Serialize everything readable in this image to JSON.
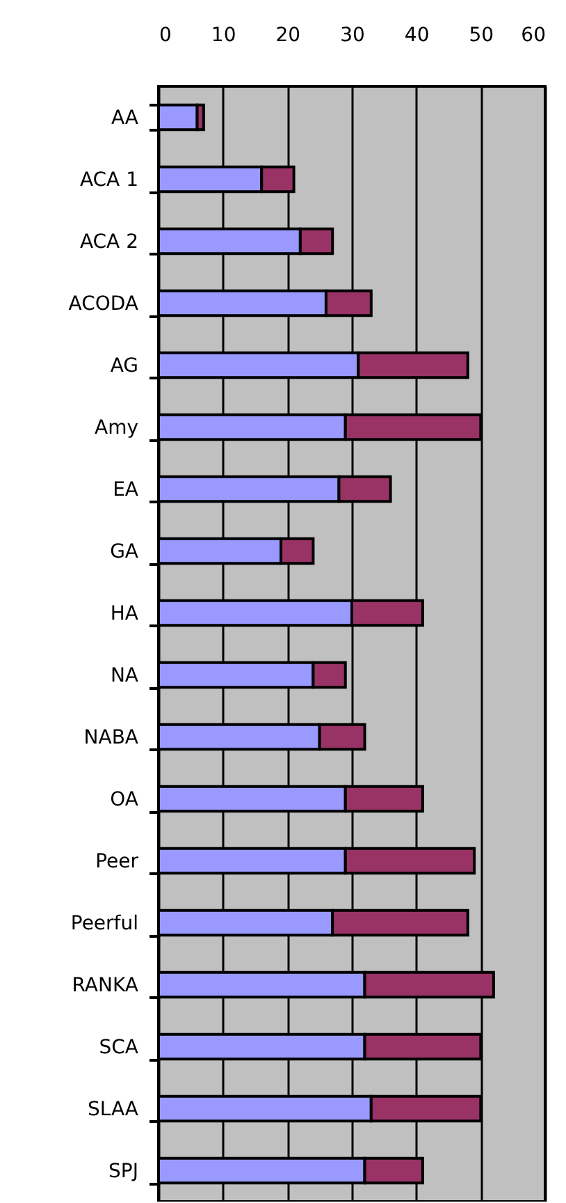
{
  "chart_data": {
    "type": "bar",
    "orientation": "horizontal",
    "stacked": true,
    "categories": [
      "AA",
      "ACA 1",
      "ACA 2",
      "ACODA",
      "AG",
      "Amy",
      "EA",
      "GA",
      "HA",
      "NA",
      "NABA",
      "OA",
      "Peer",
      "Peerful",
      "RANKA",
      "SCA",
      "SLAA",
      "SPJ"
    ],
    "series": [
      {
        "color": "#9999ff",
        "values": [
          6,
          16,
          22,
          26,
          31,
          29,
          28,
          19,
          30,
          24,
          25,
          29,
          29,
          27,
          32,
          32,
          33,
          32
        ]
      },
      {
        "color": "#993366",
        "values": [
          1,
          5,
          5,
          7,
          17,
          21,
          8,
          5,
          11,
          5,
          7,
          12,
          20,
          21,
          20,
          18,
          17,
          9
        ]
      }
    ],
    "xlim": [
      0,
      60
    ],
    "xticks": [
      0,
      10,
      20,
      30,
      40,
      50,
      60
    ],
    "grid": "x"
  }
}
